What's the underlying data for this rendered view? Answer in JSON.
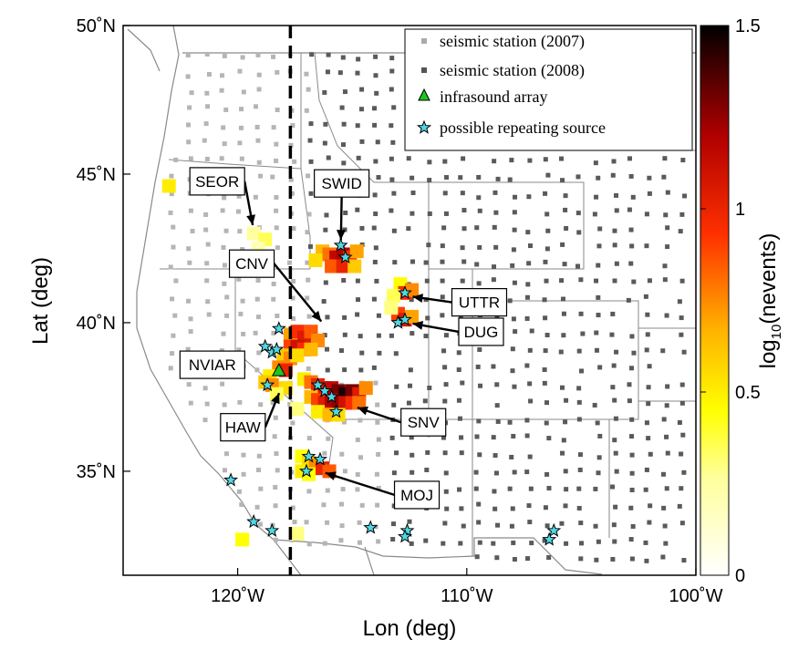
{
  "axes": {
    "x_label": "Lon (deg)",
    "y_label": "Lat (deg)",
    "x_ticks": [
      "120˚W",
      "110˚W",
      "100˚W"
    ],
    "y_ticks": [
      "35˚N",
      "40˚N",
      "45˚N",
      "50˚N"
    ],
    "lon_range": [
      -125,
      -100
    ],
    "lat_range": [
      31.5,
      50
    ],
    "reference_line_lon": -117.7
  },
  "legend": {
    "position": "top-right",
    "items": [
      {
        "key": "sta2007",
        "label": "seismic station (2007)"
      },
      {
        "key": "sta2008",
        "label": "seismic station (2008)"
      },
      {
        "key": "infra",
        "label": "infrasound array"
      },
      {
        "key": "star",
        "label": "possible repeating source"
      }
    ]
  },
  "colorbar": {
    "label": "log10(nevents)",
    "label_base": "log",
    "label_sub": "10",
    "label_rest": "(nevents)",
    "ticks": [
      "0",
      "0.5",
      "1",
      "1.5"
    ],
    "range": [
      0,
      1.5
    ]
  },
  "labels": [
    {
      "text": "SEOR",
      "lon": -119.3,
      "lat": 43.1
    },
    {
      "text": "SWID",
      "lon": -115.5,
      "lat": 42.6
    },
    {
      "text": "CNV",
      "lon": -116.2,
      "lat": 39.9
    },
    {
      "text": "UTTR",
      "lon": -112.6,
      "lat": 40.9
    },
    {
      "text": "DUG",
      "lon": -112.6,
      "lat": 40.0
    },
    {
      "text": "NVIAR",
      "lon": -118.0,
      "lat": 38.4
    },
    {
      "text": "HAW",
      "lon": -118.1,
      "lat": 37.8
    },
    {
      "text": "SNV",
      "lon": -115.0,
      "lat": 37.2
    },
    {
      "text": "MOJ",
      "lon": -116.4,
      "lat": 35.0
    }
  ],
  "infrasound_array": {
    "name": "NVIAR",
    "lon": -118.2,
    "lat": 38.4
  },
  "repeating_sources": [
    [
      -115.5,
      42.6
    ],
    [
      -115.3,
      42.2
    ],
    [
      -112.7,
      41.0
    ],
    [
      -113.0,
      40.0
    ],
    [
      -112.7,
      40.1
    ],
    [
      -118.2,
      39.8
    ],
    [
      -118.8,
      39.2
    ],
    [
      -118.5,
      39.0
    ],
    [
      -118.3,
      39.1
    ],
    [
      -116.5,
      37.9
    ],
    [
      -116.2,
      37.7
    ],
    [
      -115.9,
      37.5
    ],
    [
      -115.7,
      37.0
    ],
    [
      -118.7,
      37.9
    ],
    [
      -116.9,
      35.5
    ],
    [
      -116.4,
      35.4
    ],
    [
      -117.0,
      35.0
    ],
    [
      -120.3,
      34.7
    ],
    [
      -119.3,
      33.3
    ],
    [
      -118.5,
      33.0
    ],
    [
      -114.2,
      33.1
    ],
    [
      -112.6,
      33.0
    ],
    [
      -112.7,
      32.8
    ],
    [
      -106.2,
      33.0
    ],
    [
      -106.4,
      32.7
    ]
  ],
  "activity_cells": [
    [
      -123.0,
      44.6,
      0.5
    ],
    [
      -119.3,
      43.0,
      0.25
    ],
    [
      -118.8,
      42.8,
      0.35
    ],
    [
      -119.1,
      42.5,
      0.2
    ],
    [
      -116.3,
      42.4,
      0.65
    ],
    [
      -116.0,
      42.3,
      0.8
    ],
    [
      -115.7,
      42.2,
      1.15
    ],
    [
      -115.4,
      42.3,
      1.2
    ],
    [
      -115.1,
      42.2,
      0.95
    ],
    [
      -114.8,
      42.4,
      0.7
    ],
    [
      -116.6,
      42.1,
      0.55
    ],
    [
      -115.9,
      41.9,
      0.85
    ],
    [
      -115.4,
      41.9,
      1.0
    ],
    [
      -114.9,
      41.9,
      0.6
    ],
    [
      -112.9,
      41.3,
      0.45
    ],
    [
      -112.7,
      41.0,
      0.95
    ],
    [
      -112.4,
      41.1,
      0.75
    ],
    [
      -113.2,
      40.9,
      0.35
    ],
    [
      -113.0,
      40.3,
      0.9
    ],
    [
      -112.7,
      40.1,
      1.05
    ],
    [
      -112.4,
      40.2,
      0.7
    ],
    [
      -113.3,
      40.5,
      0.3
    ],
    [
      -117.7,
      39.6,
      0.7
    ],
    [
      -117.4,
      39.7,
      0.95
    ],
    [
      -117.1,
      39.5,
      1.05
    ],
    [
      -116.8,
      39.7,
      0.85
    ],
    [
      -116.5,
      39.4,
      0.75
    ],
    [
      -117.7,
      39.2,
      0.9
    ],
    [
      -117.4,
      39.2,
      1.1
    ],
    [
      -117.1,
      39.1,
      0.95
    ],
    [
      -116.8,
      39.1,
      0.65
    ],
    [
      -118.0,
      38.9,
      0.6
    ],
    [
      -117.7,
      38.8,
      0.75
    ],
    [
      -117.4,
      38.9,
      0.55
    ],
    [
      -118.2,
      38.5,
      0.75
    ],
    [
      -117.9,
      38.4,
      1.0
    ],
    [
      -118.6,
      38.2,
      0.5
    ],
    [
      -118.8,
      38.0,
      0.6
    ],
    [
      -118.5,
      37.9,
      0.75
    ],
    [
      -117.9,
      37.8,
      0.55
    ],
    [
      -118.3,
      37.6,
      0.35
    ],
    [
      -117.1,
      38.1,
      0.5
    ],
    [
      -116.8,
      38.0,
      0.8
    ],
    [
      -116.5,
      37.9,
      1.0
    ],
    [
      -116.2,
      37.8,
      1.05
    ],
    [
      -115.9,
      37.8,
      1.15
    ],
    [
      -115.6,
      37.7,
      1.3
    ],
    [
      -115.3,
      37.6,
      1.45
    ],
    [
      -115.0,
      37.7,
      1.3
    ],
    [
      -114.7,
      37.6,
      1.05
    ],
    [
      -114.4,
      37.8,
      0.75
    ],
    [
      -116.8,
      37.5,
      0.65
    ],
    [
      -116.5,
      37.4,
      0.9
    ],
    [
      -116.2,
      37.3,
      1.05
    ],
    [
      -115.9,
      37.4,
      1.2
    ],
    [
      -115.6,
      37.3,
      1.25
    ],
    [
      -115.3,
      37.3,
      1.1
    ],
    [
      -115.0,
      37.3,
      0.95
    ],
    [
      -114.7,
      37.3,
      0.8
    ],
    [
      -116.5,
      37.0,
      0.5
    ],
    [
      -116.0,
      36.9,
      0.65
    ],
    [
      -115.6,
      36.9,
      0.55
    ],
    [
      -117.4,
      37.1,
      0.3
    ],
    [
      -117.2,
      35.5,
      0.45
    ],
    [
      -116.9,
      35.3,
      0.55
    ],
    [
      -116.6,
      35.2,
      0.75
    ],
    [
      -116.3,
      35.1,
      1.0
    ],
    [
      -116.0,
      35.0,
      0.85
    ],
    [
      -117.2,
      35.0,
      0.5
    ],
    [
      -116.9,
      34.9,
      0.45
    ],
    [
      -119.8,
      32.7,
      0.45
    ],
    [
      -117.4,
      32.9,
      0.3
    ]
  ]
}
